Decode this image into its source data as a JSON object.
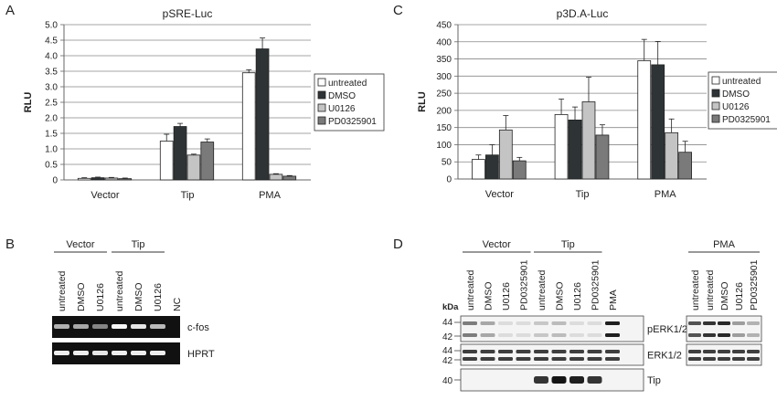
{
  "panels": {
    "A": "A",
    "B": "B",
    "C": "C",
    "D": "D"
  },
  "legend": {
    "entries": [
      "untreated",
      "DMSO",
      "U0126",
      "PD0325901"
    ],
    "colors": [
      "#ffffff",
      "#2e3436",
      "#c4c4c4",
      "#7a7a7a"
    ]
  },
  "chart_data": [
    {
      "type": "bar",
      "title": "pSRE-Luc",
      "ylabel": "RLU",
      "xlabel": "",
      "categories": [
        "Vector",
        "Tip",
        "PMA"
      ],
      "ylim": [
        0,
        5.0
      ],
      "yticks": [
        "0",
        "0.5",
        "1.0",
        "1.5",
        "2.0",
        "2.5",
        "3.0",
        "3.5",
        "4.0",
        "4.5",
        "5.0"
      ],
      "grid": true,
      "legend_position": "right",
      "series": [
        {
          "name": "untreated",
          "values": [
            0.05,
            1.25,
            3.45
          ],
          "errors": [
            0.02,
            0.22,
            0.1
          ]
        },
        {
          "name": "DMSO",
          "values": [
            0.07,
            1.72,
            4.22
          ],
          "errors": [
            0.02,
            0.1,
            0.35
          ]
        },
        {
          "name": "U0126",
          "values": [
            0.06,
            0.8,
            0.18
          ],
          "errors": [
            0.02,
            0.03,
            0.02
          ]
        },
        {
          "name": "PD0325901",
          "values": [
            0.04,
            1.22,
            0.12
          ],
          "errors": [
            0.02,
            0.1,
            0.02
          ]
        }
      ]
    },
    {
      "type": "bar",
      "title": "p3D.A-Luc",
      "ylabel": "RLU",
      "xlabel": "",
      "categories": [
        "Vector",
        "Tip",
        "PMA"
      ],
      "ylim": [
        0,
        450
      ],
      "yticks": [
        "0",
        "50",
        "100",
        "150",
        "200",
        "250",
        "300",
        "350",
        "400",
        "450"
      ],
      "grid": true,
      "legend_position": "right",
      "series": [
        {
          "name": "untreated",
          "values": [
            57,
            188,
            345
          ],
          "errors": [
            13,
            45,
            62
          ]
        },
        {
          "name": "DMSO",
          "values": [
            70,
            172,
            333
          ],
          "errors": [
            30,
            38,
            68
          ]
        },
        {
          "name": "U0126",
          "values": [
            143,
            225,
            135
          ],
          "errors": [
            42,
            72,
            40
          ]
        },
        {
          "name": "PD0325901",
          "values": [
            53,
            128,
            78
          ],
          "errors": [
            10,
            30,
            32
          ]
        }
      ]
    }
  ],
  "gelB": {
    "group_labels": [
      "Vector",
      "Tip"
    ],
    "lanes": [
      "untreated",
      "DMSO",
      "U0126",
      "untreated",
      "DMSO",
      "U0126",
      "NC"
    ],
    "rows": [
      {
        "label": "c-fos",
        "intensity": [
          0.55,
          0.5,
          0.3,
          0.95,
          0.85,
          0.6,
          0
        ]
      },
      {
        "label": "HPRT",
        "intensity": [
          0.9,
          0.9,
          0.85,
          0.9,
          0.9,
          0.9,
          0
        ]
      }
    ]
  },
  "blotD": {
    "group_labels": [
      "Vector",
      "Tip"
    ],
    "lanes": [
      "untreated",
      "DMSO",
      "U0126",
      "PD0325901",
      "untreated",
      "DMSO",
      "U0126",
      "PD0325901",
      "PMA"
    ],
    "pma_group_label": "PMA",
    "pma_lanes": [
      "untreated",
      "untreated",
      "DMSO",
      "U0126",
      "PD0325901"
    ],
    "kda_label": "kDa",
    "rows": [
      {
        "label": "pERK1/2",
        "markers": [
          "44",
          "42"
        ],
        "main": [
          0.5,
          0.3,
          0.05,
          0.05,
          0.15,
          0.2,
          0.05,
          0.05,
          0.95
        ],
        "pma": [
          0.7,
          0.85,
          0.9,
          0.35,
          0.25
        ]
      },
      {
        "label": "ERK1/2",
        "markers": [
          "44",
          "42"
        ],
        "main": [
          0.8,
          0.8,
          0.8,
          0.8,
          0.8,
          0.8,
          0.8,
          0.8,
          0.8
        ],
        "pma": [
          0.8,
          0.8,
          0.8,
          0.8,
          0.8
        ]
      },
      {
        "label": "Tip",
        "markers": [
          "40"
        ],
        "main": [
          0,
          0,
          0,
          0,
          0.85,
          1.0,
          0.95,
          0.85,
          0
        ],
        "pma": null
      }
    ]
  }
}
